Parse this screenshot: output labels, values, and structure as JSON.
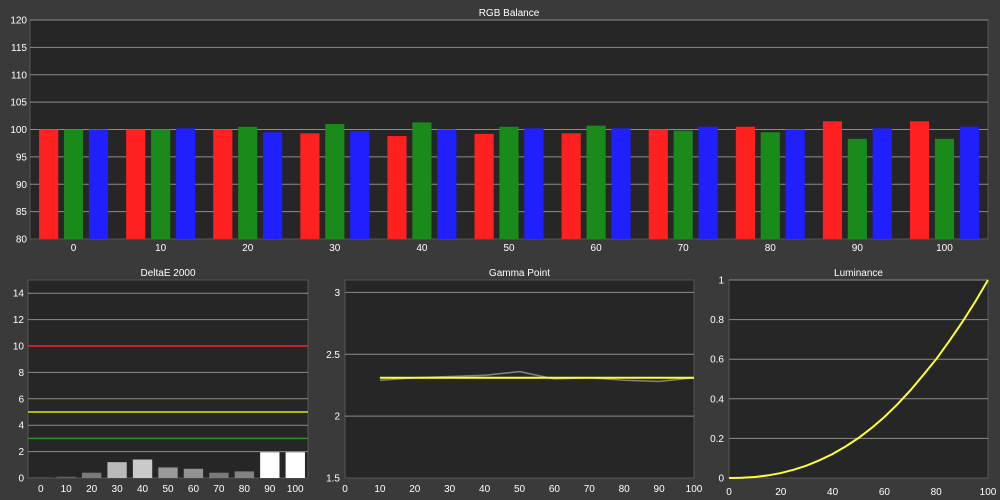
{
  "colors": {
    "background": "#3a3a3a",
    "plot_bg": "#262626",
    "grid": "#8c8c8c",
    "red": "#ff2020",
    "green": "#1a8a1a",
    "blue": "#2020ff",
    "yellow": "#ffff33",
    "threshold_red": "#ff2020",
    "threshold_yellow": "#e8e020",
    "threshold_green": "#1a9a1a",
    "measured_gray": "#7f7f7f"
  },
  "chart_data": [
    {
      "id": "rgb",
      "type": "bar",
      "title": "RGB Balance",
      "categories": [
        "0",
        "10",
        "20",
        "30",
        "40",
        "50",
        "60",
        "70",
        "80",
        "90",
        "100"
      ],
      "series": [
        {
          "color": "red",
          "values": [
            100.0,
            100.0,
            100.0,
            99.3,
            98.8,
            99.2,
            99.3,
            100.0,
            100.5,
            101.5,
            101.5
          ]
        },
        {
          "color": "green",
          "values": [
            100.0,
            100.0,
            100.5,
            101.0,
            101.3,
            100.5,
            100.7,
            99.8,
            99.5,
            98.3,
            98.3
          ]
        },
        {
          "color": "blue",
          "values": [
            100.0,
            100.2,
            99.5,
            99.7,
            100.0,
            100.2,
            100.2,
            100.5,
            100.0,
            100.2,
            100.5
          ]
        }
      ],
      "ylim": [
        80,
        120
      ],
      "yticks": [
        80,
        85,
        90,
        95,
        100,
        105,
        110,
        115,
        120
      ],
      "grid": true
    },
    {
      "id": "deltae",
      "type": "bar",
      "title": "DeltaE 2000",
      "categories": [
        "0",
        "10",
        "20",
        "30",
        "40",
        "50",
        "60",
        "70",
        "80",
        "90",
        "100"
      ],
      "values": [
        0.05,
        0.1,
        0.4,
        1.2,
        1.4,
        0.8,
        0.7,
        0.4,
        0.5,
        1.95,
        1.95
      ],
      "thresholds": [
        {
          "value": 10,
          "color": "threshold_red"
        },
        {
          "value": 5,
          "color": "threshold_yellow"
        },
        {
          "value": 3,
          "color": "threshold_green"
        }
      ],
      "ylim": [
        0,
        15
      ],
      "yticks": [
        0,
        2,
        4,
        6,
        8,
        10,
        12,
        14
      ],
      "grid": true
    },
    {
      "id": "gamma",
      "type": "line",
      "title": "Gamma Point",
      "x": [
        10,
        20,
        30,
        40,
        50,
        60,
        70,
        80,
        90,
        100
      ],
      "series": [
        {
          "color": "measured_gray",
          "values": [
            2.29,
            2.31,
            2.32,
            2.33,
            2.36,
            2.3,
            2.31,
            2.29,
            2.28,
            2.31
          ]
        },
        {
          "color": "yellow",
          "values": [
            2.31,
            2.31,
            2.31,
            2.31,
            2.31,
            2.31,
            2.31,
            2.31,
            2.31,
            2.31
          ]
        }
      ],
      "xlim": [
        0,
        100
      ],
      "xticks": [
        0,
        10,
        20,
        30,
        40,
        50,
        60,
        70,
        80,
        90,
        100
      ],
      "ylim": [
        1.5,
        3.1
      ],
      "yticks": [
        1.5,
        2,
        2.5,
        3
      ],
      "grid": true
    },
    {
      "id": "luminance",
      "type": "line",
      "title": "Luminance",
      "x": [
        0,
        5,
        10,
        15,
        20,
        25,
        30,
        35,
        40,
        45,
        50,
        55,
        60,
        65,
        70,
        75,
        80,
        85,
        90,
        95,
        100
      ],
      "series": [
        {
          "color": "yellow",
          "values": [
            0,
            0.0012,
            0.005,
            0.013,
            0.025,
            0.042,
            0.063,
            0.09,
            0.121,
            0.159,
            0.202,
            0.252,
            0.308,
            0.372,
            0.442,
            0.52,
            0.6,
            0.691,
            0.786,
            0.889,
            1.0
          ]
        }
      ],
      "xlim": [
        0,
        100
      ],
      "xticks": [
        0,
        20,
        40,
        60,
        80,
        100
      ],
      "ylim": [
        0,
        1
      ],
      "yticks": [
        0,
        0.2,
        0.4,
        0.6,
        0.8,
        1
      ],
      "grid": true
    }
  ]
}
